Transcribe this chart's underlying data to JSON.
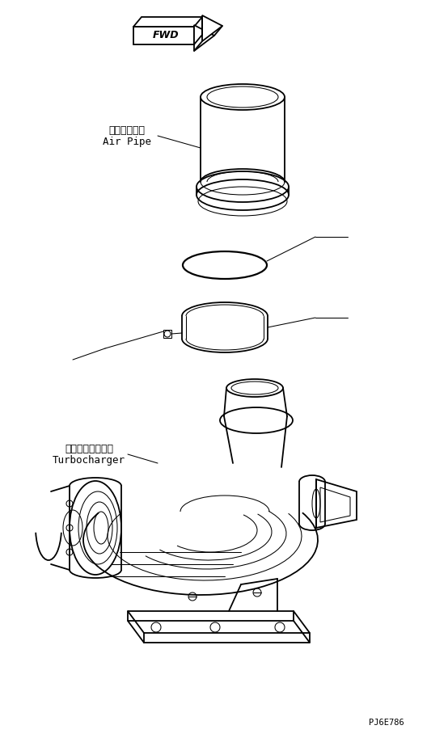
{
  "bg_color": "#ffffff",
  "label_air_pipe_ja": "エアーパイプ",
  "label_air_pipe_en": "Air Pipe",
  "label_turbo_ja": "ターボチャージャ",
  "label_turbo_en": "Turbocharger",
  "footnote": "PJ6E786",
  "lc": "#000000",
  "lw": 1.3,
  "tlw": 0.75
}
